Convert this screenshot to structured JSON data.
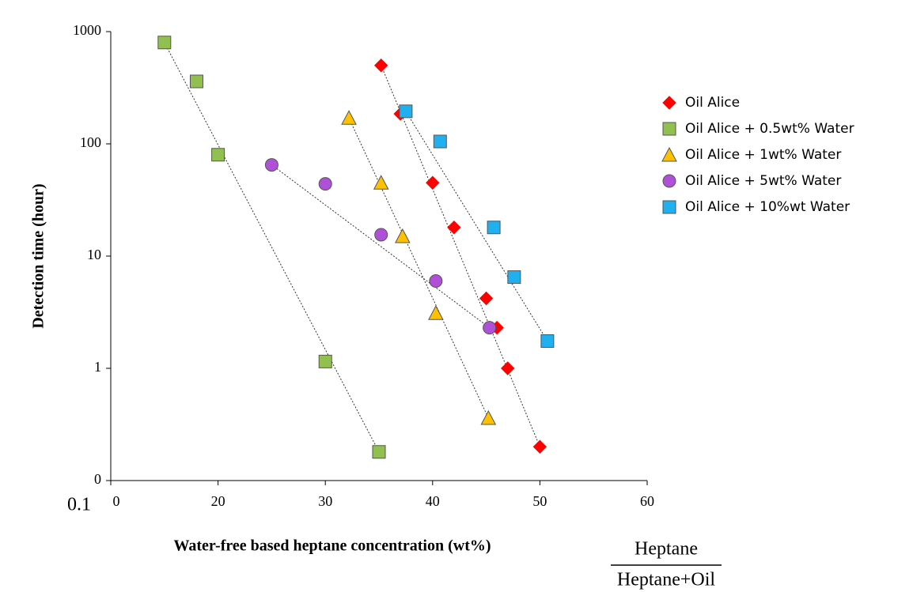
{
  "chart_data": {
    "type": "scatter",
    "xlabel": "Water-free based heptane concentration (wt%)",
    "ylabel": "Detection time (hour)",
    "annotations": [
      "0.1",
      "Heptane",
      "Heptane+Oil"
    ],
    "xlim": [
      10,
      60
    ],
    "xticks": [
      {
        "value": 10,
        "label": "0"
      },
      20,
      30,
      40,
      50,
      60
    ],
    "ylim": [
      0.1,
      1000
    ],
    "yticks": [
      {
        "value": 0.1,
        "label": "0"
      },
      1,
      10,
      100,
      1000
    ],
    "log_y": true,
    "grid": false,
    "trend_lines": true,
    "legend": "right",
    "series": [
      {
        "name": "Oil Alice",
        "color": "#ff0000",
        "marker": "diamond",
        "x": [
          35.2,
          37,
          40,
          42,
          45,
          46,
          47,
          50
        ],
        "values": [
          500,
          185,
          45,
          18,
          4.2,
          2.3,
          1.0,
          0.2
        ]
      },
      {
        "name": "Oil Alice + 0.5wt% Water",
        "color": "#92c050",
        "marker": "square",
        "x": [
          15,
          18,
          20,
          30,
          35
        ],
        "values": [
          800,
          360,
          80,
          1.15,
          0.18
        ]
      },
      {
        "name": "Oil Alice + 1wt% Water",
        "color": "#ffc000",
        "marker": "triangle",
        "x": [
          32.2,
          35.2,
          37.2,
          40.3,
          45.2
        ],
        "values": [
          170,
          45,
          15,
          3.1,
          0.36
        ]
      },
      {
        "name": "Oil Alice + 5wt% Water",
        "color": "#b050d8",
        "marker": "circle",
        "x": [
          25,
          30,
          35.2,
          40.3,
          45.3
        ],
        "values": [
          65,
          44,
          15.5,
          6,
          2.3
        ]
      },
      {
        "name": "Oil Alice + 10%wt Water",
        "color": "#20b0f0",
        "marker": "square",
        "x": [
          37.5,
          40.7,
          45.7,
          47.6,
          50.7
        ],
        "values": [
          195,
          105,
          18,
          6.5,
          1.75
        ]
      }
    ]
  }
}
